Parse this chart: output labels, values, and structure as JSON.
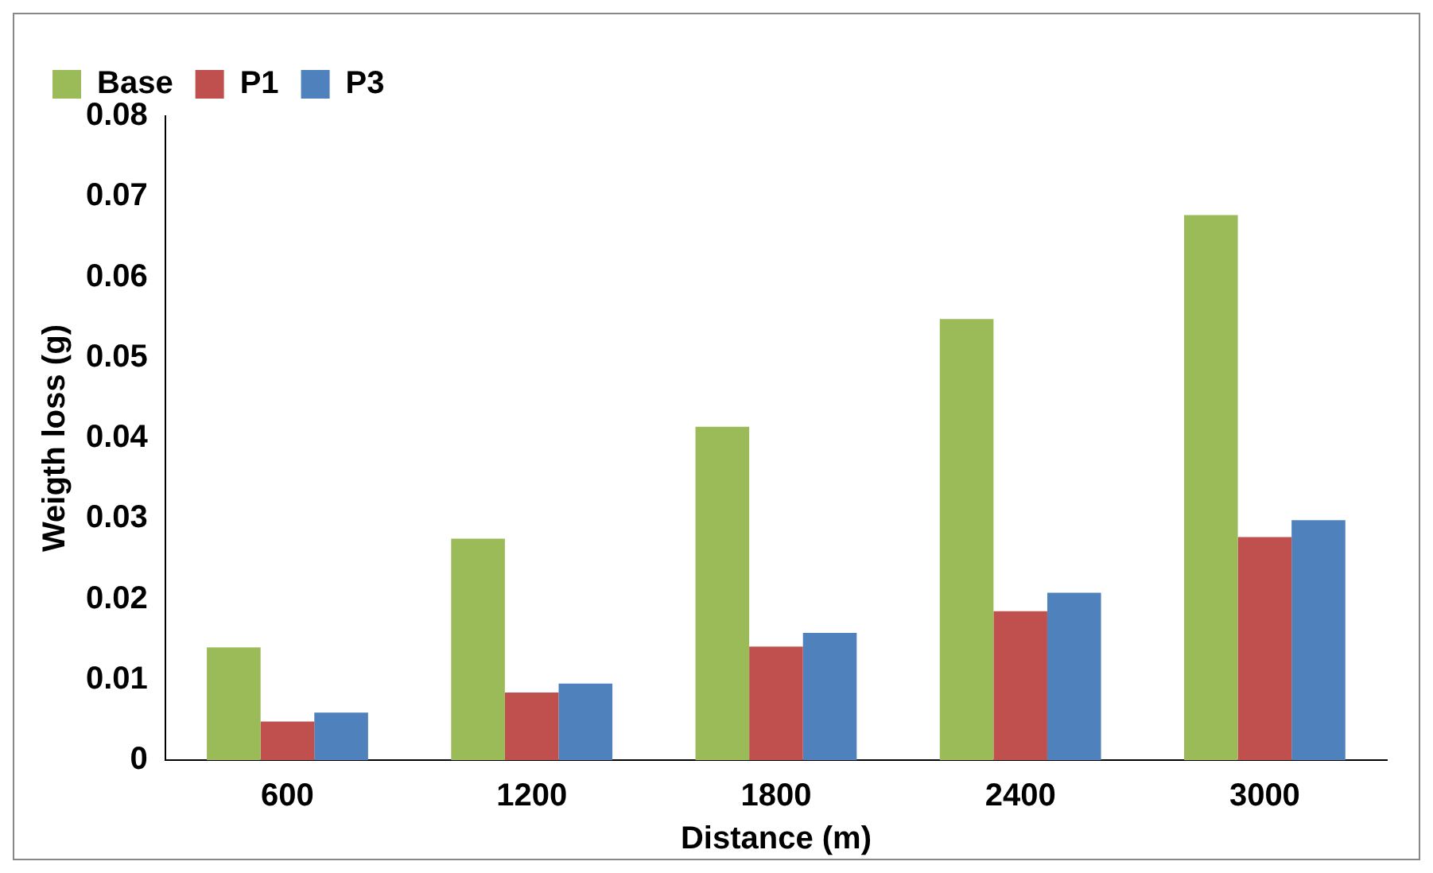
{
  "chart_data": {
    "type": "bar",
    "xlabel": "Distance (m)",
    "ylabel": "Weigth loss (g)",
    "categories": [
      "600",
      "1200",
      "1800",
      "2400",
      "3000"
    ],
    "series": [
      {
        "name": "Base",
        "color": "#9bbb59",
        "values": [
          0.014,
          0.0275,
          0.0414,
          0.0548,
          0.0677
        ]
      },
      {
        "name": "P1",
        "color": "#c0504d",
        "values": [
          0.0048,
          0.0084,
          0.0141,
          0.0185,
          0.0277
        ]
      },
      {
        "name": "P3",
        "color": "#4f81bd",
        "values": [
          0.0059,
          0.0095,
          0.0158,
          0.0208,
          0.0298
        ]
      }
    ],
    "ylim": [
      0,
      0.08
    ],
    "yticks": [
      {
        "value": 0,
        "label": "0"
      },
      {
        "value": 0.01,
        "label": "0.01"
      },
      {
        "value": 0.02,
        "label": "0.02"
      },
      {
        "value": 0.03,
        "label": "0.03"
      },
      {
        "value": 0.04,
        "label": "0.04"
      },
      {
        "value": 0.05,
        "label": "0.05"
      },
      {
        "value": 0.06,
        "label": "0.06"
      },
      {
        "value": 0.07,
        "label": "0.07"
      },
      {
        "value": 0.08,
        "label": "0.08"
      }
    ],
    "grid": false,
    "legend": "top left"
  }
}
